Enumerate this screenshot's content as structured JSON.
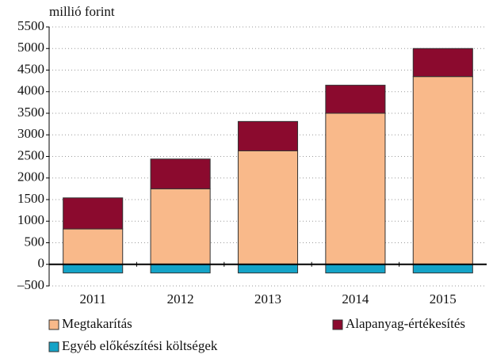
{
  "chart_data": {
    "type": "stacked_bar",
    "y_axis_label": "millió forint",
    "categories": [
      "2011",
      "2012",
      "2013",
      "2014",
      "2015"
    ],
    "series": [
      {
        "name": "Megtakarítás",
        "color": "#f9b98a",
        "values": [
          820,
          1750,
          2630,
          3500,
          4350
        ]
      },
      {
        "name": "Alapanyag-értékesítés",
        "color": "#8b0a2e",
        "values": [
          720,
          690,
          680,
          650,
          650
        ]
      },
      {
        "name": "Egyéb előkészítési költségek",
        "color": "#14a3c7",
        "values": [
          -200,
          -200,
          -200,
          -200,
          -200
        ]
      }
    ],
    "ylim": [
      -500,
      5500
    ],
    "yticks": [
      {
        "value": -500,
        "label": "–500"
      },
      0,
      500,
      1000,
      1500,
      2000,
      2500,
      3000,
      3500,
      4000,
      4500,
      5000,
      5500
    ],
    "grid": true
  }
}
